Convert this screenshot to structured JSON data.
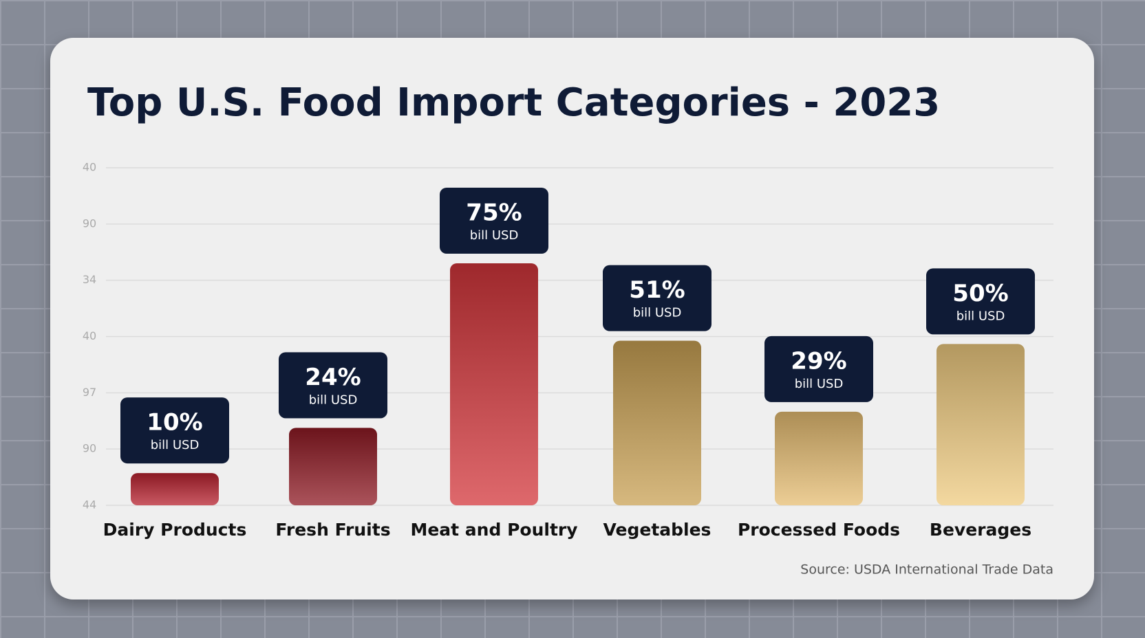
{
  "chart_data": {
    "type": "bar",
    "title": "Top U.S. Food Import Categories - 2023",
    "categories": [
      "Dairy Products",
      "Fresh Fruits",
      "Meat and Poultry",
      "Vegetables",
      "Processed Foods",
      "Beverages"
    ],
    "values": [
      10,
      24,
      75,
      51,
      29,
      50
    ],
    "value_labels": [
      "10%",
      "24%",
      "75%",
      "51%",
      "29%",
      "50%"
    ],
    "value_unit": "bill USD",
    "y_axis_labels": [
      "40",
      "90",
      "34",
      "40",
      "97",
      "90",
      "44"
    ],
    "colors": [
      "#b8222f",
      "#8f1a24",
      "#d3363b",
      "#c9a154",
      "#e6bd72",
      "#efcb80"
    ],
    "grid": true,
    "source": "Source: USDA International Trade Data"
  }
}
